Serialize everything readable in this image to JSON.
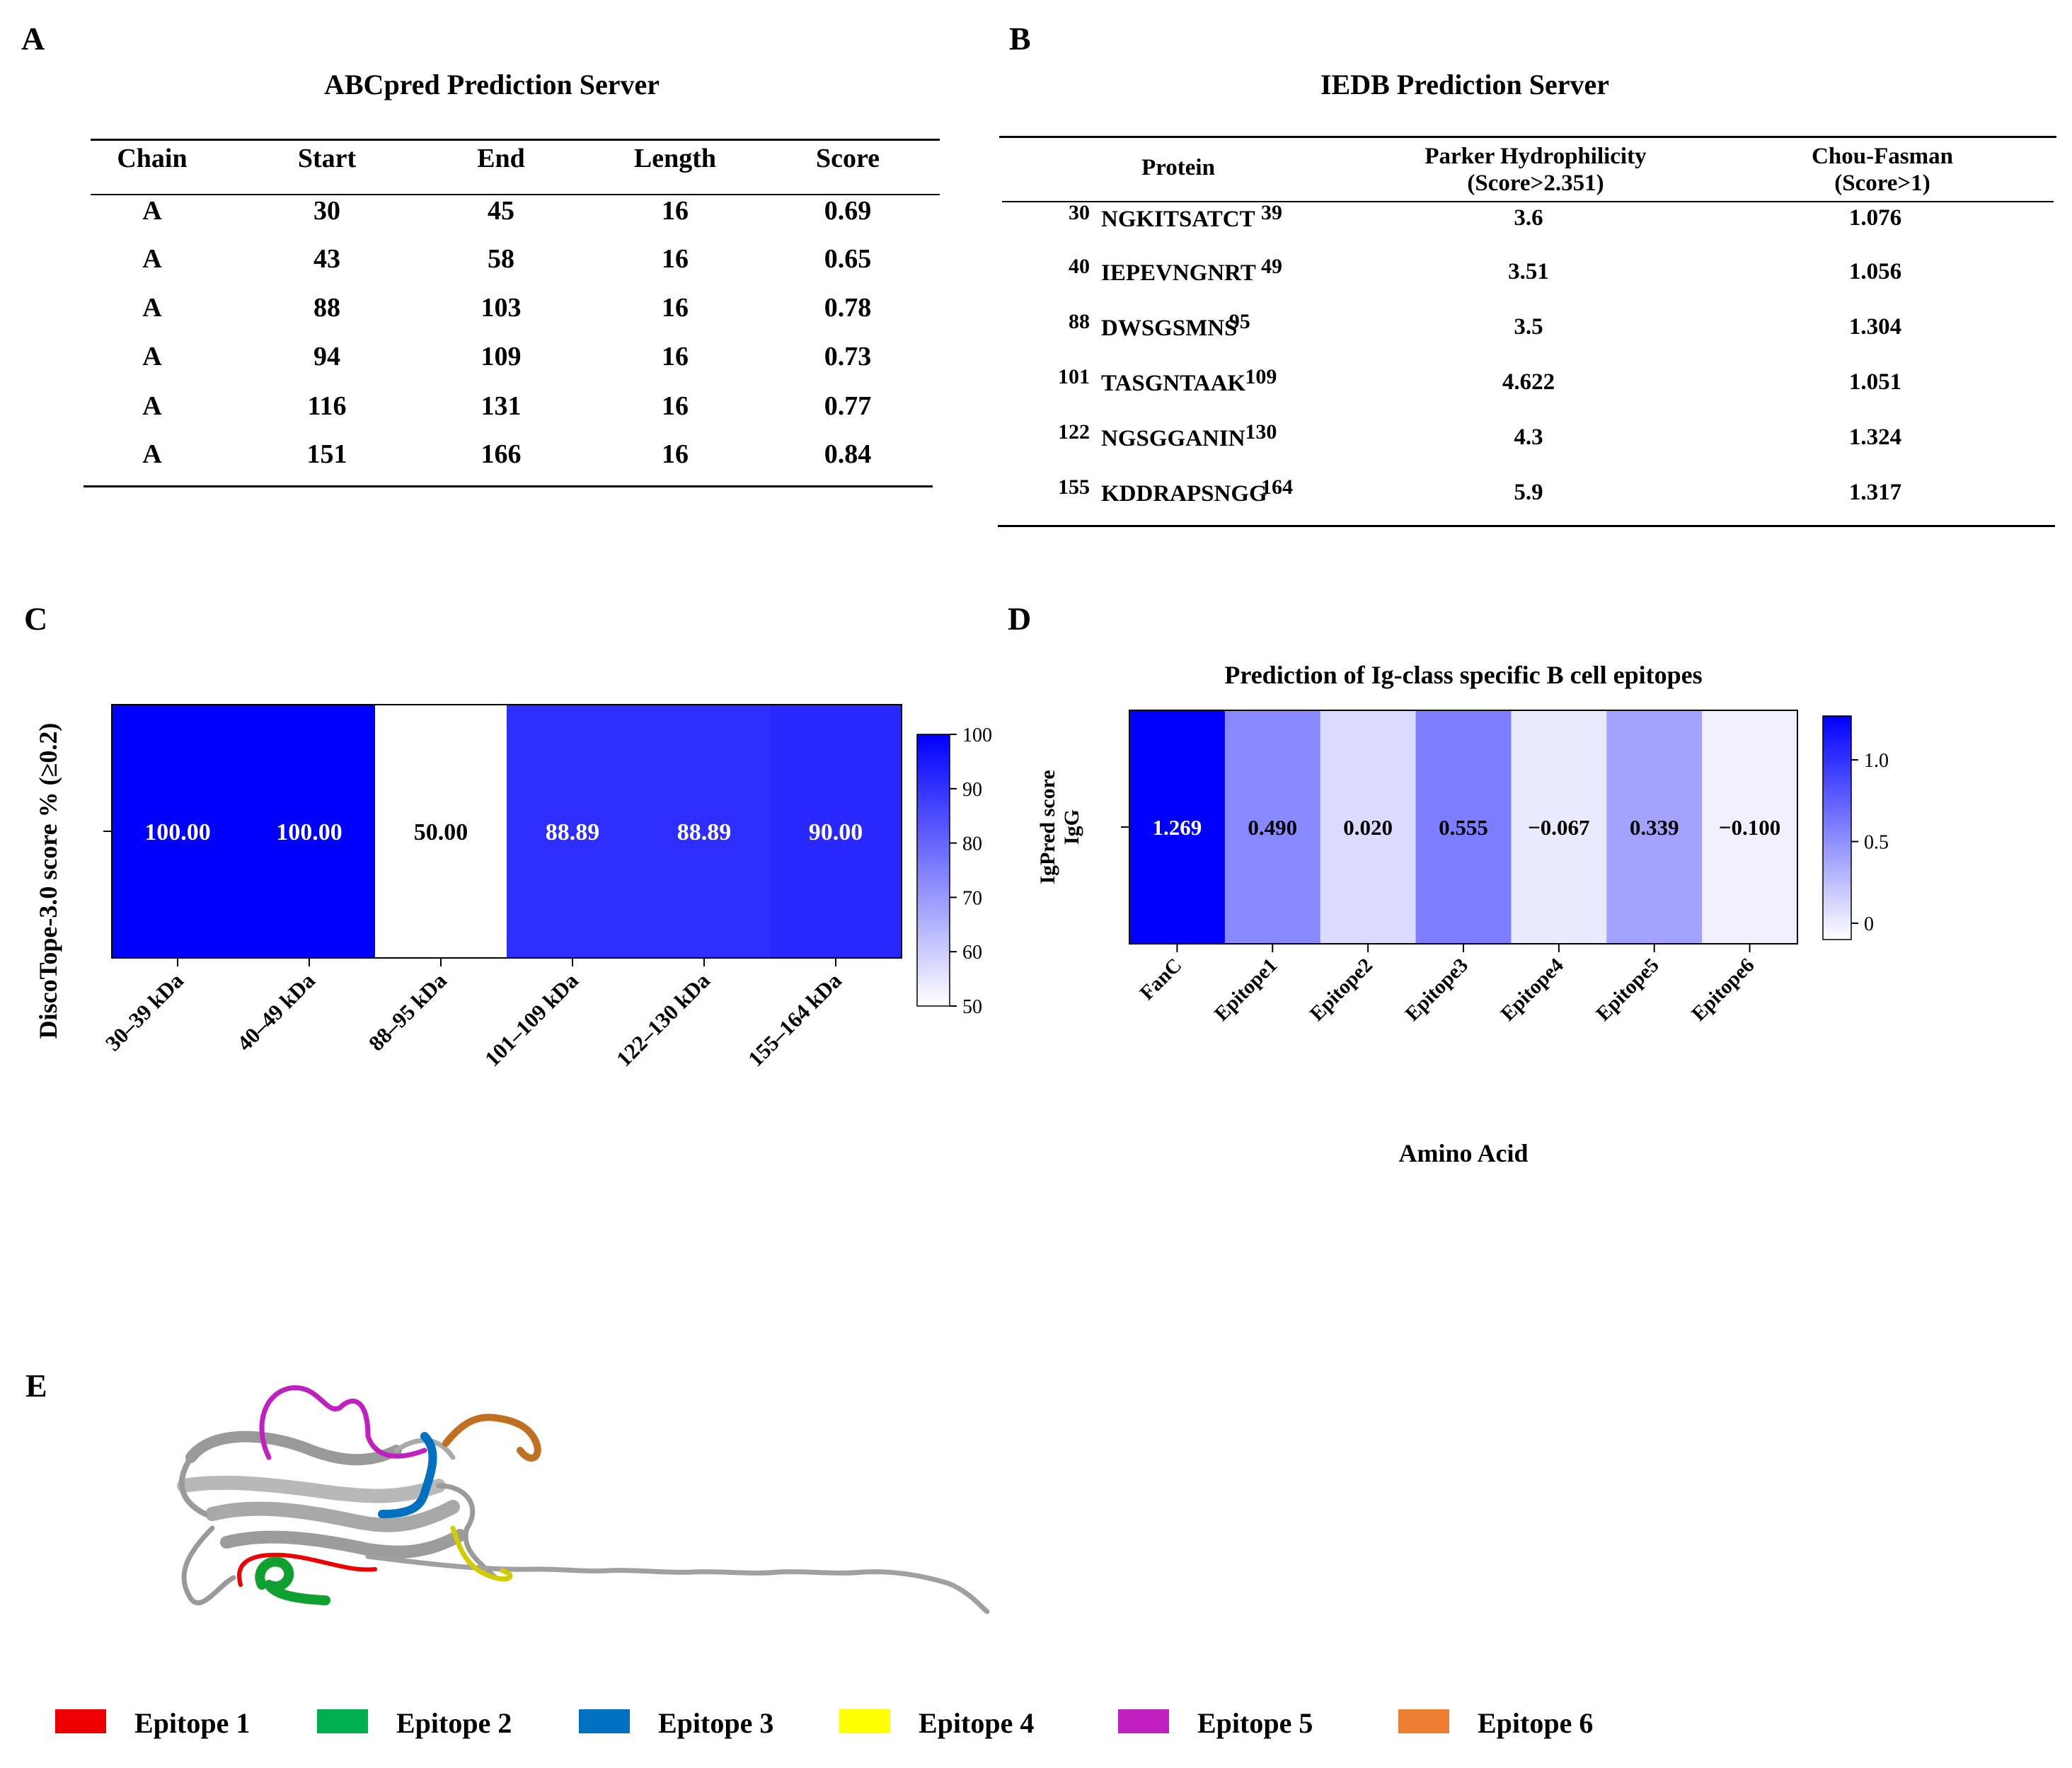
{
  "panels": {
    "a": "A",
    "b": "B",
    "c": "C",
    "d": "D",
    "e": "E"
  },
  "table_a": {
    "title": "ABCpred Prediction Server",
    "headers": [
      "Chain",
      "Start",
      "End",
      "Length",
      "Score"
    ],
    "rows": [
      [
        "A",
        "30",
        "45",
        "16",
        "0.69"
      ],
      [
        "A",
        "43",
        "58",
        "16",
        "0.65"
      ],
      [
        "A",
        "88",
        "103",
        "16",
        "0.78"
      ],
      [
        "A",
        "94",
        "109",
        "16",
        "0.73"
      ],
      [
        "A",
        "116",
        "131",
        "16",
        "0.77"
      ],
      [
        "A",
        "151",
        "166",
        "16",
        "0.84"
      ]
    ]
  },
  "table_b": {
    "title": "IEDB Prediction Server",
    "headers": {
      "protein": "Protein",
      "parker": "Parker Hydrophilicity",
      "parker_sub": "(Score>2.351)",
      "chou": "Chou-Fasman",
      "chou_sub": "(Score>1)"
    },
    "rows": [
      {
        "start": "30",
        "seq": "NGKITSATCT",
        "end": "39",
        "parker": "3.6",
        "chou": "1.076"
      },
      {
        "start": "40",
        "seq": "IEPEVNGNRT",
        "end": "49",
        "parker": "3.51",
        "chou": "1.056"
      },
      {
        "start": "88",
        "seq": "DWSGSMNS",
        "end": "95",
        "parker": "3.5",
        "chou": "1.304"
      },
      {
        "start": "101",
        "seq": "TASGNTAAK",
        "end": "109",
        "parker": "4.622",
        "chou": "1.051"
      },
      {
        "start": "122",
        "seq": "NGSGGANIN",
        "end": "130",
        "parker": "4.3",
        "chou": "1.324"
      },
      {
        "start": "155",
        "seq": "KDDRAPSNGG",
        "end": "164",
        "parker": "5.9",
        "chou": "1.317"
      }
    ]
  },
  "chart_data": [
    {
      "type": "heatmap",
      "title": "",
      "ylabel": "DiscoTope-3.0  score % (≥0.2)",
      "xlabel": "",
      "categories": [
        "30–39 kDa",
        "40–49 kDa",
        "88–95 kDa",
        "101–109 kDa",
        "122–130 kDa",
        "155–164 kDa"
      ],
      "values": [
        100.0,
        100.0,
        50.0,
        88.89,
        88.89,
        90.0
      ],
      "labels": [
        "100.00",
        "100.00",
        "50.00",
        "88.89",
        "88.89",
        "90.00"
      ],
      "colorbar": {
        "min": 50,
        "max": 100,
        "ticks": [
          "100",
          "90",
          "80",
          "70",
          "60",
          "50"
        ],
        "tick_values": [
          100,
          90,
          80,
          70,
          60,
          50
        ]
      },
      "color_low": "#ffffff",
      "color_high": "#0000ff"
    },
    {
      "type": "heatmap",
      "title": "Prediction of Ig-class specific B cell epitopes",
      "ylabel": "IgPred score",
      "ylabel2": "IgG",
      "xlabel": "Amino Acid",
      "categories": [
        "FanC",
        "Epitope1",
        "Epitope2",
        "Epitope3",
        "Epitope4",
        "Epitope5",
        "Epitope6"
      ],
      "values": [
        1.269,
        0.49,
        0.02,
        0.555,
        -0.067,
        0.339,
        -0.1
      ],
      "labels": [
        "1.269",
        "0.490",
        "0.020",
        "0.555",
        "−0.067",
        "0.339",
        "−0.100"
      ],
      "colorbar": {
        "min": -0.1,
        "max": 1.269,
        "ticks": [
          "1.0",
          "0.5",
          "0"
        ],
        "tick_values": [
          1.0,
          0.5,
          0.0
        ]
      },
      "color_low": "#ffffff",
      "color_high": "#0000ff"
    }
  ],
  "legend_e": [
    {
      "label": "Epitope 1",
      "color": "#ee0000"
    },
    {
      "label": "Epitope 2",
      "color": "#00b050"
    },
    {
      "label": "Epitope 3",
      "color": "#0070c0"
    },
    {
      "label": "Epitope 4",
      "color": "#ffff00"
    },
    {
      "label": "Epitope 5",
      "color": "#c020c0"
    },
    {
      "label": "Epitope 6",
      "color": "#ed7d31"
    }
  ]
}
